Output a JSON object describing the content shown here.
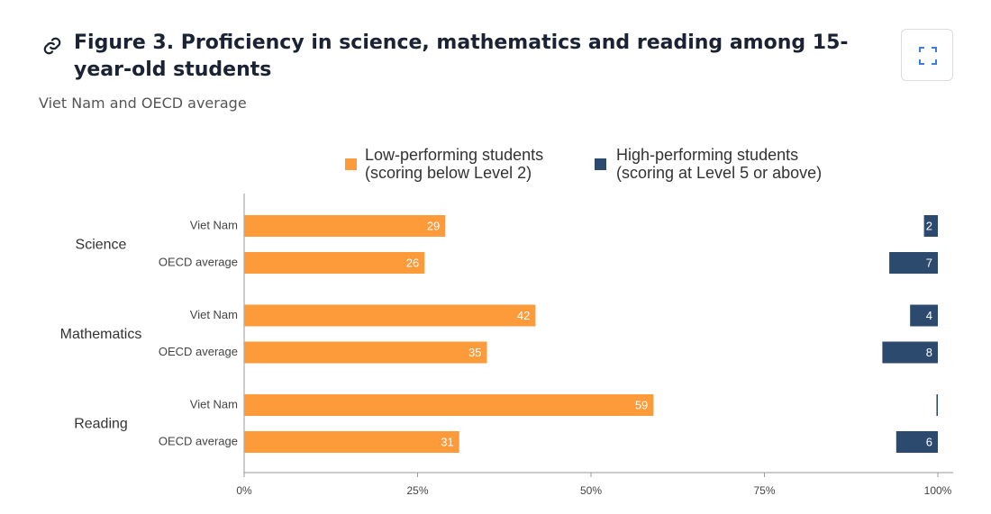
{
  "title": "Figure 3. Proficiency in science, mathematics and reading among 15-year-old students",
  "subtitle": "Viet Nam and OECD average",
  "chart_data": {
    "type": "bar",
    "orientation": "horizontal",
    "groups": [
      "Science",
      "Mathematics",
      "Reading"
    ],
    "categories": [
      "Viet Nam",
      "OECD average",
      "Viet Nam",
      "OECD average",
      "Viet Nam",
      "OECD average"
    ],
    "series": [
      {
        "name": "Low-performing students (scoring below Level 2)",
        "color": "#fd9a3a",
        "values": [
          29,
          26,
          42,
          35,
          59,
          31
        ]
      },
      {
        "name": "High-performing students (scoring at Level 5 or above)",
        "color": "#2c4a6e",
        "values": [
          2,
          7,
          4,
          8,
          0.2,
          6
        ],
        "value_labels": [
          "2",
          "7",
          "4",
          "8",
          null,
          "6"
        ]
      }
    ],
    "xlim": [
      0,
      100
    ],
    "xticks": [
      {
        "value": 0,
        "label": "0%"
      },
      {
        "value": 25,
        "label": "25%"
      },
      {
        "value": 50,
        "label": "50%"
      },
      {
        "value": 75,
        "label": "75%"
      },
      {
        "value": 100,
        "label": "100%"
      }
    ]
  }
}
